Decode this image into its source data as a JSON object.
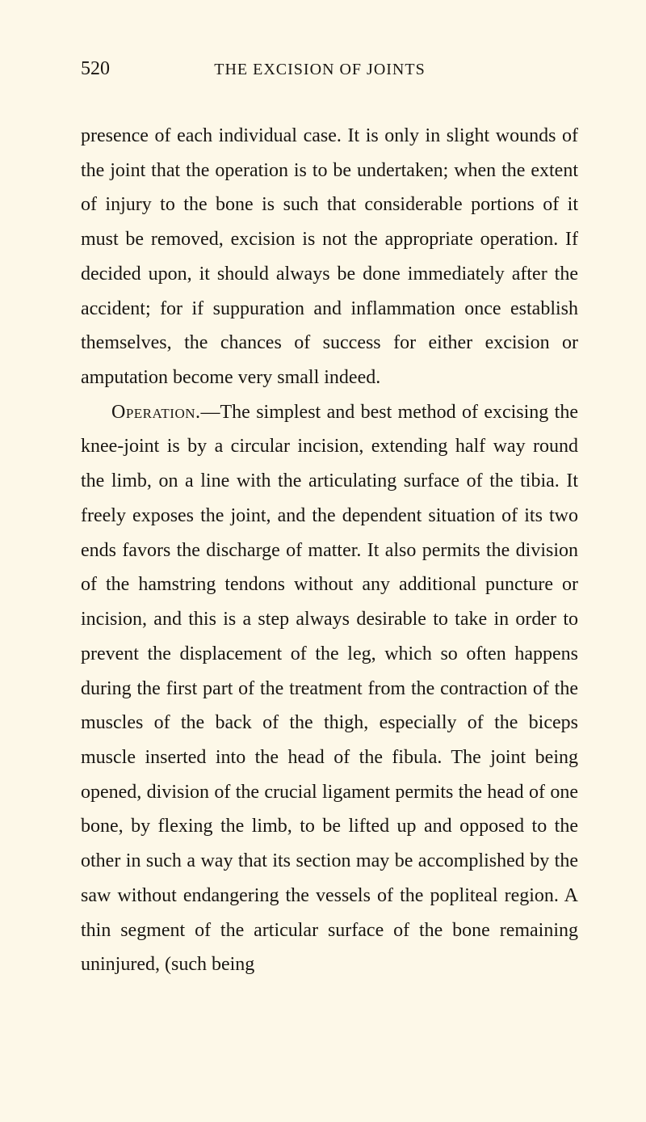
{
  "page": {
    "number": "520",
    "running_title": "THE EXCISION OF JOINTS"
  },
  "paragraphs": {
    "p1": "presence of each individual case. It is only in slight wounds of the joint that the operation is to be under­taken; when the extent of injury to the bone is such that considerable portions of it must be removed, excision is not the appropriate operation. If decided upon, it should always be done immediately after the accident; for if suppuration and inflammation once establish themselves, the chances of success for either excision or amputation become very small indeed.",
    "p2_lead": "Operation.",
    "p2_rest": "—The simplest and best method of ex­cising the knee-joint is by a circular incision, extend­ing half way round the limb, on a line with the articulating surface of the tibia. It freely exposes the joint, and the dependent situation of its two ends favors the discharge of matter. It also permits the division of the hamstring tendons without any additional puncture or incision, and this is a step always desirable to take in order to prevent the dis­placement of the leg, which so often happens during the first part of the treatment from the contraction of the muscles of the back of the thigh, especially of the biceps muscle inserted into the head of the fibula. The joint being opened, division of the cru­cial ligament permits the head of one bone, by flexing the limb, to be lifted up and opposed to the other in such a way that its section may be accomplished by the saw without endangering the vessels of the pop­liteal region. A thin segment of the articular sur­face of the bone remaining uninjured, (such being"
  },
  "colors": {
    "background": "#fdf8e8",
    "text": "#1a1612"
  },
  "typography": {
    "body_fontsize": 24,
    "header_fontsize": 24,
    "running_title_fontsize": 20,
    "line_height": 1.78
  }
}
